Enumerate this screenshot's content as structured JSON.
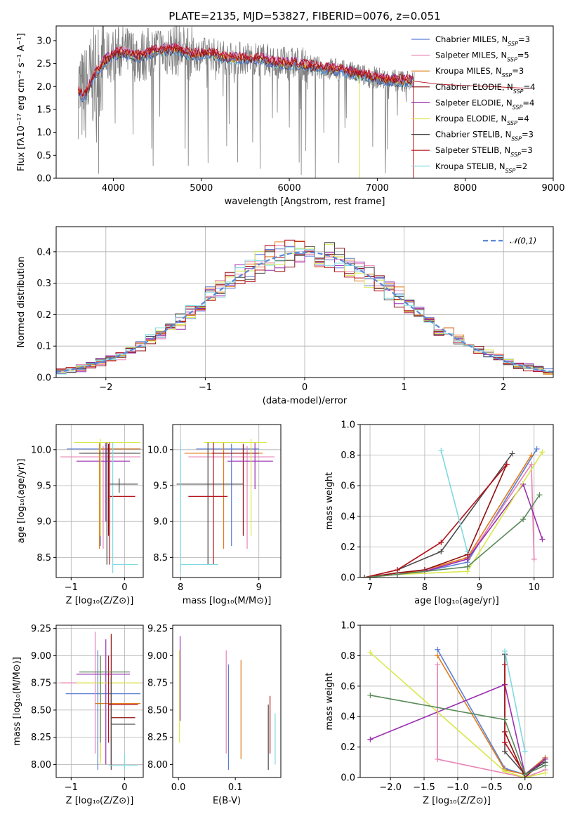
{
  "colors": {
    "chabrier_miles": "#5b7fd6",
    "salpeter_miles": "#e882b4",
    "kroupa_miles": "#e07b1a",
    "chabrier_elodie": "#8e1010",
    "salpeter_elodie": "#9a2fb0",
    "kroupa_elodie": "#d8e84a",
    "chabrier_stelib": "#4a4a4a",
    "salpeter_stelib": "#b5121b",
    "kroupa_stelib": "#7fd9df",
    "kroupa_elodie_weights": "#5b8a5b",
    "data_grey": "#7f7f7f",
    "normal_curve": "#5b87d6"
  },
  "chart_data": [
    {
      "type": "line",
      "panel": "spectrum",
      "title": "PLATE=2135, MJD=53827, FIBERID=0076, z=0.051",
      "xlabel": "wavelength [Angstrom, rest frame]",
      "ylabel": "Flux [fλ10⁻¹⁷ erg cm⁻² s⁻¹ A⁻¹]",
      "xlim": [
        3350,
        9000
      ],
      "ylim": [
        0,
        3.32
      ],
      "xticks": [
        4000,
        5000,
        6000,
        7000,
        8000,
        9000
      ],
      "yticks": [
        0.0,
        0.5,
        1.0,
        1.5,
        2.0,
        2.5,
        3.0
      ],
      "grid": false,
      "legend_position": "right",
      "legend": [
        {
          "name": "Chabrier MILES, N",
          "sub": "SSP",
          "suffix": "=3",
          "color_key": "chabrier_miles"
        },
        {
          "name": "Salpeter MILES, N",
          "sub": "SSP",
          "suffix": "=5",
          "color_key": "salpeter_miles"
        },
        {
          "name": "Kroupa MILES, N",
          "sub": "SSP",
          "suffix": "=3",
          "color_key": "kroupa_miles"
        },
        {
          "name": "Chabrier ELODIE, N",
          "sub": "SSP",
          "suffix": "=4",
          "color_key": "chabrier_elodie"
        },
        {
          "name": "Salpeter ELODIE, N",
          "sub": "SSP",
          "suffix": "=4",
          "color_key": "salpeter_elodie"
        },
        {
          "name": "Kroupa ELODIE, N",
          "sub": "SSP",
          "suffix": "=4",
          "color_key": "kroupa_elodie"
        },
        {
          "name": "Chabrier STELIB, N",
          "sub": "SSP",
          "suffix": "=3",
          "color_key": "chabrier_stelib"
        },
        {
          "name": "Salpeter STELIB, N",
          "sub": "SSP",
          "suffix": "=3",
          "color_key": "salpeter_stelib"
        },
        {
          "name": "Kroupa STELIB, N",
          "sub": "SSP",
          "suffix": "=2",
          "color_key": "kroupa_stelib"
        }
      ],
      "continuum": {
        "x": [
          3600,
          3650,
          3700,
          3800,
          3900,
          4000,
          4100,
          4200,
          4300,
          4500,
          4700,
          4900,
          5100,
          5300,
          5500,
          5700,
          5900,
          6100,
          6300,
          6500,
          6700,
          6900,
          7100,
          7300,
          7400
        ],
        "y": [
          1.95,
          1.75,
          1.9,
          2.3,
          2.55,
          2.7,
          2.75,
          2.7,
          2.65,
          2.78,
          2.82,
          2.7,
          2.72,
          2.62,
          2.62,
          2.6,
          2.5,
          2.5,
          2.42,
          2.38,
          2.3,
          2.22,
          2.15,
          2.12,
          2.12
        ]
      },
      "model_extension": {
        "x": [
          7400,
          7700,
          8000,
          8300,
          8600,
          8750
        ],
        "y": [
          2.12,
          2.05,
          2.02,
          2.0,
          1.97,
          1.96
        ]
      }
    },
    {
      "type": "line",
      "panel": "residual_histogram",
      "xlabel": "(data-model)/error",
      "ylabel": "Normed distribution",
      "xlim": [
        -2.5,
        2.5
      ],
      "ylim": [
        0,
        0.48
      ],
      "xticks": [
        -2,
        -1,
        0,
        1,
        2
      ],
      "yticks": [
        0.0,
        0.1,
        0.2,
        0.3,
        0.4
      ],
      "grid": true,
      "legend_position": "top-right",
      "legend": [
        {
          "name": "𝒩(0,1)",
          "color_key": "normal_curve",
          "dashed": true
        }
      ],
      "normal": {
        "mean": 0,
        "sigma": 1
      },
      "bin_width": 0.1
    },
    {
      "type": "scatter",
      "panel": "age_vs_Z",
      "xlabel": "Z [log₁₀(Z/Z⊙)]",
      "ylabel": "age  [log₁₀(age/yr)]",
      "xlim": [
        -1.28,
        0.35
      ],
      "ylim": [
        8.22,
        10.35
      ],
      "xticks": [
        -1,
        0
      ],
      "yticks": [
        8.5,
        9.0,
        9.5,
        10.0
      ],
      "grid": true,
      "errorbars": [
        {
          "x": -0.45,
          "x_lo": -1.08,
          "x_hi": 0.3,
          "y": 10.01,
          "y_lo": 8.66,
          "y_hi": 10.08,
          "color_key": "chabrier_miles"
        },
        {
          "x": -0.4,
          "x_lo": -1.2,
          "x_hi": 0.3,
          "y": 9.9,
          "y_lo": 8.62,
          "y_hi": 10.05,
          "color_key": "salpeter_miles"
        },
        {
          "x": -0.47,
          "x_lo": -0.48,
          "x_hi": 0.3,
          "y": 10.01,
          "y_lo": 8.62,
          "y_hi": 10.1,
          "color_key": "kroupa_miles"
        },
        {
          "x": -0.3,
          "x_lo": -0.8,
          "x_hi": 0.2,
          "y": 9.95,
          "y_lo": 8.8,
          "y_hi": 10.08,
          "color_key": "chabrier_elodie"
        },
        {
          "x": -0.35,
          "x_lo": -0.9,
          "x_hi": 0.1,
          "y": 9.84,
          "y_lo": 9.0,
          "y_hi": 10.1,
          "color_key": "salpeter_elodie"
        },
        {
          "x": -0.45,
          "x_lo": -0.95,
          "x_hi": 0.3,
          "y": 10.1,
          "y_lo": 8.8,
          "y_hi": 10.15,
          "color_key": "kroupa_elodie"
        },
        {
          "x": -0.33,
          "x_lo": -0.85,
          "x_hi": 0.3,
          "y": 9.95,
          "y_lo": 8.4,
          "y_hi": 10.1,
          "color_key": "chabrier_stelib"
        },
        {
          "x": -0.28,
          "x_lo": -0.28,
          "x_hi": 0.2,
          "y": 9.35,
          "y_lo": 8.4,
          "y_hi": 10.1,
          "color_key": "salpeter_stelib"
        },
        {
          "x": -0.22,
          "x_lo": -0.22,
          "x_hi": 0.25,
          "y": 8.4,
          "y_lo": 8.28,
          "y_hi": 10.1,
          "color_key": "kroupa_stelib"
        },
        {
          "x": -0.1,
          "x_lo": -0.28,
          "x_hi": 0.25,
          "y": 9.52,
          "y_lo": 9.4,
          "y_hi": 9.6,
          "color_key": "chabrier_stelib"
        }
      ]
    },
    {
      "type": "scatter",
      "panel": "age_vs_mass",
      "xlabel": "mass [log₁₀(M/M⊙)]",
      "ylabel": "",
      "xlim": [
        7.9,
        9.28
      ],
      "ylim": [
        8.22,
        10.35
      ],
      "xticks": [
        8,
        9
      ],
      "yticks": [
        8.5,
        9.0,
        9.5,
        10.0
      ],
      "grid": true,
      "errorbars": [
        {
          "x": 8.65,
          "x_lo": 8.2,
          "x_hi": 9.0,
          "y": 10.01,
          "y_lo": 8.66,
          "y_hi": 10.08,
          "color_key": "chabrier_miles"
        },
        {
          "x": 8.85,
          "x_lo": 8.1,
          "x_hi": 9.2,
          "y": 9.9,
          "y_lo": 8.62,
          "y_hi": 10.05,
          "color_key": "salpeter_miles"
        },
        {
          "x": 8.55,
          "x_lo": 8.05,
          "x_hi": 9.05,
          "y": 9.95,
          "y_lo": 8.62,
          "y_hi": 10.1,
          "color_key": "kroupa_miles"
        },
        {
          "x": 8.8,
          "x_lo": 8.4,
          "x_hi": 9.0,
          "y": 9.95,
          "y_lo": 8.8,
          "y_hi": 10.08,
          "color_key": "chabrier_elodie"
        },
        {
          "x": 8.95,
          "x_lo": 8.6,
          "x_hi": 9.18,
          "y": 9.84,
          "y_lo": 9.45,
          "y_hi": 10.1,
          "color_key": "salpeter_elodie"
        },
        {
          "x": 8.9,
          "x_lo": 8.3,
          "x_hi": 9.1,
          "y": 10.1,
          "y_lo": 8.8,
          "y_hi": 10.15,
          "color_key": "kroupa_elodie"
        },
        {
          "x": 8.35,
          "x_lo": 7.95,
          "x_hi": 8.8,
          "y": 9.52,
          "y_lo": 8.4,
          "y_hi": 10.1,
          "color_key": "chabrier_stelib"
        },
        {
          "x": 8.42,
          "x_lo": 8.1,
          "x_hi": 8.6,
          "y": 9.35,
          "y_lo": 8.4,
          "y_hi": 10.1,
          "color_key": "salpeter_stelib"
        },
        {
          "x": 8.0,
          "x_lo": 8.0,
          "x_hi": 8.48,
          "y": 8.4,
          "y_lo": 8.28,
          "y_hi": 10.12,
          "color_key": "kroupa_stelib"
        }
      ]
    },
    {
      "type": "line",
      "panel": "weight_vs_age",
      "xlabel": "age  [log₁₀(age/yr)]",
      "ylabel": "mass weight",
      "xlim": [
        6.82,
        10.35
      ],
      "ylim": [
        0,
        1.0
      ],
      "xticks": [
        7,
        8,
        9,
        10
      ],
      "yticks": [
        0.0,
        0.2,
        0.4,
        0.6,
        0.8,
        1.0
      ],
      "grid": true,
      "series": [
        {
          "color_key": "chabrier_miles",
          "x": [
            6.9,
            7.5,
            8.0,
            8.78,
            10.05
          ],
          "y": [
            0.0,
            0.02,
            0.04,
            0.1,
            0.84
          ]
        },
        {
          "color_key": "salpeter_miles",
          "x": [
            6.9,
            7.5,
            8.0,
            8.78,
            9.95,
            10.0
          ],
          "y": [
            0.0,
            0.03,
            0.05,
            0.12,
            0.74,
            0.12
          ]
        },
        {
          "color_key": "kroupa_miles",
          "x": [
            6.9,
            7.5,
            8.0,
            8.78,
            9.95
          ],
          "y": [
            0.0,
            0.02,
            0.05,
            0.13,
            0.8
          ]
        },
        {
          "color_key": "chabrier_elodie",
          "x": [
            6.9,
            7.5,
            8.0,
            8.78,
            9.5
          ],
          "y": [
            0.0,
            0.03,
            0.05,
            0.15,
            0.74
          ]
        },
        {
          "color_key": "salpeter_elodie",
          "x": [
            6.9,
            7.5,
            8.0,
            8.78,
            9.8,
            10.15
          ],
          "y": [
            0.0,
            0.02,
            0.04,
            0.12,
            0.61,
            0.25
          ]
        },
        {
          "color_key": "kroupa_elodie",
          "x": [
            6.9,
            7.5,
            8.78,
            10.15
          ],
          "y": [
            0.0,
            0.02,
            0.04,
            0.82
          ]
        },
        {
          "color_key": "chabrier_stelib",
          "x": [
            6.9,
            7.5,
            8.3,
            9.6
          ],
          "y": [
            0.0,
            0.05,
            0.17,
            0.81
          ]
        },
        {
          "color_key": "salpeter_stelib",
          "x": [
            6.9,
            7.5,
            8.3,
            9.5
          ],
          "y": [
            0.0,
            0.05,
            0.23,
            0.74
          ]
        },
        {
          "color_key": "kroupa_stelib",
          "x": [
            8.3,
            8.78
          ],
          "y": [
            0.83,
            0.17
          ]
        },
        {
          "color_key": "kroupa_elodie_weights",
          "x": [
            6.9,
            7.5,
            8.78,
            9.8,
            10.1
          ],
          "y": [
            0.0,
            0.02,
            0.07,
            0.38,
            0.54
          ]
        }
      ]
    },
    {
      "type": "scatter",
      "panel": "mass_vs_Z",
      "xlabel": "Z [log₁₀(Z/Z⊙)]",
      "ylabel": "mass [log₁₀(M/M⊙)]",
      "xlim": [
        -1.28,
        0.35
      ],
      "ylim": [
        7.88,
        9.28
      ],
      "xticks": [
        -1,
        0
      ],
      "yticks": [
        8.0,
        8.25,
        8.5,
        8.75,
        9.0,
        9.25
      ],
      "grid": true,
      "errorbars": [
        {
          "x": -0.5,
          "x_lo": -1.1,
          "x_hi": 0.3,
          "y": 8.65,
          "y_lo": 7.95,
          "y_hi": 9.05,
          "color_key": "chabrier_miles"
        },
        {
          "x": -0.55,
          "x_lo": -1.2,
          "x_hi": 0.3,
          "y": 8.75,
          "y_lo": 8.1,
          "y_hi": 9.22,
          "color_key": "salpeter_miles"
        },
        {
          "x": -0.45,
          "x_lo": -0.55,
          "x_hi": 0.3,
          "y": 8.56,
          "y_lo": 8.05,
          "y_hi": 9.0,
          "color_key": "kroupa_miles"
        },
        {
          "x": -0.25,
          "x_lo": -0.25,
          "x_hi": 0.2,
          "y": 8.43,
          "y_lo": 8.0,
          "y_hi": 9.2,
          "color_key": "chabrier_elodie"
        },
        {
          "x": -0.35,
          "x_lo": -0.9,
          "x_hi": 0.1,
          "y": 8.83,
          "y_lo": 8.0,
          "y_hi": 9.15,
          "color_key": "salpeter_elodie"
        },
        {
          "x": -0.45,
          "x_lo": -0.9,
          "x_hi": 0.3,
          "y": 8.75,
          "y_lo": 8.0,
          "y_hi": 8.95,
          "color_key": "kroupa_elodie"
        },
        {
          "x": -0.25,
          "x_lo": -0.25,
          "x_hi": 0.2,
          "y": 8.37,
          "y_lo": 7.95,
          "y_hi": 8.8,
          "color_key": "chabrier_stelib"
        },
        {
          "x": -0.3,
          "x_lo": -0.3,
          "x_hi": 0.25,
          "y": 8.55,
          "y_lo": 8.2,
          "y_hi": 9.0,
          "color_key": "salpeter_stelib"
        },
        {
          "x": 0.0,
          "x_lo": -0.3,
          "x_hi": 0.25,
          "y": 7.99,
          "y_lo": 7.95,
          "y_hi": 8.1,
          "color_key": "kroupa_stelib"
        },
        {
          "x": -0.45,
          "x_lo": -0.85,
          "x_hi": 0.1,
          "y": 8.85,
          "y_lo": 8.2,
          "y_hi": 9.0,
          "color_key": "kroupa_elodie_weights"
        }
      ]
    },
    {
      "type": "scatter",
      "panel": "mass_vs_EBV",
      "xlabel": "E(B-V)",
      "ylabel": "",
      "xlim": [
        -0.01,
        0.18
      ],
      "ylim": [
        7.88,
        9.28
      ],
      "xticks": [
        0.0,
        0.1
      ],
      "yticks": [
        8.0,
        8.25,
        8.5,
        8.75,
        9.0,
        9.25
      ],
      "grid": false,
      "errorbars": [
        {
          "x": 0.002,
          "x_lo": 0.002,
          "x_hi": 0.002,
          "y": 8.6,
          "y_lo": 8.2,
          "y_hi": 9.05,
          "color_key": "kroupa_elodie"
        },
        {
          "x": 0.003,
          "x_lo": 0.003,
          "x_hi": 0.003,
          "y": 8.7,
          "y_lo": 8.4,
          "y_hi": 9.18,
          "color_key": "salpeter_elodie"
        },
        {
          "x": 0.084,
          "x_lo": 0.084,
          "x_hi": 0.084,
          "y": 8.6,
          "y_lo": 8.1,
          "y_hi": 9.05,
          "color_key": "salpeter_miles"
        },
        {
          "x": 0.088,
          "x_lo": 0.088,
          "x_hi": 0.088,
          "y": 8.5,
          "y_lo": 7.95,
          "y_hi": 8.92,
          "color_key": "chabrier_miles"
        },
        {
          "x": 0.11,
          "x_lo": 0.11,
          "x_hi": 0.11,
          "y": 8.5,
          "y_lo": 8.05,
          "y_hi": 8.96,
          "color_key": "kroupa_miles"
        },
        {
          "x": 0.158,
          "x_lo": 0.158,
          "x_hi": 0.158,
          "y": 8.2,
          "y_lo": 7.95,
          "y_hi": 8.55,
          "color_key": "chabrier_stelib"
        },
        {
          "x": 0.161,
          "x_lo": 0.161,
          "x_hi": 0.161,
          "y": 8.3,
          "y_lo": 8.1,
          "y_hi": 8.63,
          "color_key": "salpeter_stelib"
        },
        {
          "x": 0.17,
          "x_lo": 0.17,
          "x_hi": 0.17,
          "y": 8.2,
          "y_lo": 8.0,
          "y_hi": 8.47,
          "color_key": "kroupa_stelib"
        }
      ]
    },
    {
      "type": "line",
      "panel": "weight_vs_Z",
      "xlabel": "Z [log₁₀(Z/Z⊙)]",
      "ylabel": "mass weight",
      "xlim": [
        -2.45,
        0.42
      ],
      "ylim": [
        0,
        1.0
      ],
      "xticks": [
        -2.0,
        -1.5,
        -1.0,
        -0.5,
        0.0
      ],
      "yticks": [
        0.0,
        0.2,
        0.4,
        0.6,
        0.8,
        1.0
      ],
      "grid": true,
      "series": [
        {
          "color_key": "chabrier_miles",
          "x": [
            -1.3,
            -0.3,
            0.0,
            0.3
          ],
          "y": [
            0.84,
            0.06,
            0.02,
            0.1
          ]
        },
        {
          "color_key": "salpeter_miles",
          "x": [
            -1.3,
            -1.3,
            0.0,
            0.3
          ],
          "y": [
            0.74,
            0.12,
            0.0,
            0.05
          ]
        },
        {
          "color_key": "kroupa_miles",
          "x": [
            -1.3,
            -0.3,
            0.0,
            0.3
          ],
          "y": [
            0.8,
            0.05,
            0.02,
            0.13
          ]
        },
        {
          "color_key": "chabrier_elodie",
          "x": [
            -0.3,
            -0.3,
            0.0,
            0.3
          ],
          "y": [
            0.74,
            0.3,
            0.0,
            0.12
          ]
        },
        {
          "color_key": "salpeter_elodie",
          "x": [
            -2.3,
            -0.3,
            0.0,
            0.3
          ],
          "y": [
            0.25,
            0.61,
            0.02,
            0.12
          ]
        },
        {
          "color_key": "kroupa_elodie",
          "x": [
            -2.3,
            -0.3,
            0.0,
            0.3
          ],
          "y": [
            0.82,
            0.04,
            0.0,
            0.03
          ]
        },
        {
          "color_key": "chabrier_stelib",
          "x": [
            -0.3,
            -0.3,
            0.0,
            0.3
          ],
          "y": [
            0.81,
            0.17,
            0.02,
            0.1
          ]
        },
        {
          "color_key": "salpeter_stelib",
          "x": [
            -0.3,
            -0.3,
            0.0
          ],
          "y": [
            0.74,
            0.23,
            0.02
          ]
        },
        {
          "color_key": "kroupa_stelib",
          "x": [
            -0.3,
            0.0
          ],
          "y": [
            0.83,
            0.17
          ]
        },
        {
          "color_key": "kroupa_elodie_weights",
          "x": [
            -2.3,
            -0.3,
            0.0,
            0.3
          ],
          "y": [
            0.54,
            0.38,
            0.02,
            0.08
          ]
        }
      ]
    }
  ]
}
